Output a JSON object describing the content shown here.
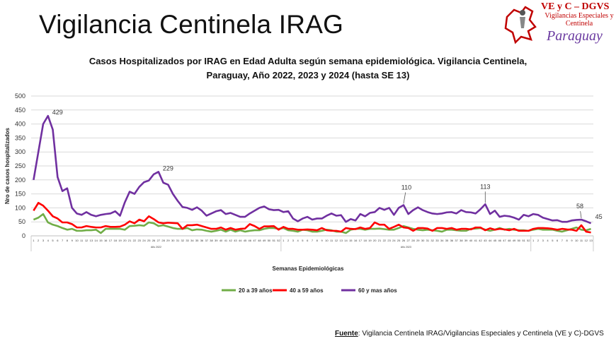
{
  "header": {
    "title": "Vigilancia Centinela IRAG"
  },
  "logo": {
    "line1": "VE y C – DGVS",
    "line2": "Vigilancias Especiales y Centinela",
    "line3": "Paraguay"
  },
  "footer": {
    "source_label": "Fuente",
    "source_text": ": Vigilancia  Centinela IRAG/Vigilancias Especiales y Centinela (VE y C)-DGVS"
  },
  "chart_data": {
    "type": "line",
    "title": "Casos Hospitalizados por IRAG en Edad Adulta según semana epidemiológica. Vigilancia Centinela, Paraguay, Año 2022, 2023 y 2024 (hasta SE 13)",
    "title_line1": "Casos Hospitalizados por IRAG en Edad Adulta según semana epidemiológica. Vigilancia Centinela,",
    "title_line2": "Paraguay, Año 2022, 2023 y 2024 (hasta SE 13)",
    "xlabel": "Semanas Epidemiológicas",
    "ylabel": "Nro de casos hospitalizados",
    "ylim": [
      0,
      500
    ],
    "yticks": [
      0,
      50,
      100,
      150,
      200,
      250,
      300,
      350,
      400,
      450,
      500
    ],
    "grid": true,
    "legend_position": "bottom",
    "year_groups": [
      {
        "label": "Año 2022",
        "weeks": 52
      },
      {
        "label": "Año 2023",
        "weeks": 52
      },
      {
        "label": "",
        "weeks": 13
      }
    ],
    "series": [
      {
        "name": "20 a 39 años",
        "color": "#70ad47",
        "values": [
          58,
          65,
          78,
          48,
          40,
          35,
          28,
          22,
          25,
          18,
          18,
          20,
          20,
          22,
          10,
          25,
          25,
          25,
          25,
          22,
          35,
          36,
          38,
          36,
          48,
          45,
          35,
          38,
          33,
          28,
          25,
          25,
          28,
          20,
          23,
          22,
          18,
          15,
          18,
          22,
          15,
          22,
          15,
          20,
          15,
          18,
          20,
          20,
          25,
          28,
          28,
          25,
          28,
          20,
          18,
          15,
          22,
          20,
          15,
          15,
          18,
          22,
          20,
          15,
          15,
          10,
          22,
          25,
          25,
          22,
          25,
          25,
          26,
          24,
          22,
          22,
          28,
          35,
          30,
          25,
          22,
          20,
          22,
          20,
          18,
          15,
          22,
          22,
          20,
          18,
          18,
          25,
          26,
          28,
          22,
          18,
          22,
          28,
          22,
          25,
          22,
          20,
          20,
          18,
          22,
          25,
          22,
          22,
          22,
          18,
          15,
          20,
          25,
          30,
          22,
          20,
          25
        ]
      },
      {
        "name": "40 a 59 años",
        "color": "#ff0000",
        "values": [
          90,
          118,
          108,
          90,
          70,
          62,
          48,
          48,
          42,
          30,
          30,
          35,
          32,
          30,
          30,
          35,
          32,
          32,
          33,
          40,
          52,
          45,
          58,
          52,
          70,
          60,
          48,
          45,
          47,
          46,
          45,
          25,
          38,
          38,
          40,
          35,
          30,
          25,
          25,
          30,
          22,
          28,
          22,
          25,
          26,
          42,
          35,
          25,
          34,
          34,
          35,
          22,
          32,
          25,
          25,
          22,
          22,
          23,
          22,
          20,
          28,
          20,
          18,
          18,
          15,
          28,
          25,
          24,
          30,
          25,
          28,
          48,
          40,
          40,
          25,
          32,
          40,
          30,
          28,
          18,
          28,
          28,
          26,
          18,
          28,
          28,
          25,
          28,
          22,
          25,
          25,
          23,
          30,
          30,
          20,
          27,
          22,
          25,
          23,
          20,
          25,
          18,
          18,
          18,
          25,
          28,
          28,
          27,
          25,
          22,
          25,
          23,
          22,
          18,
          38,
          15,
          12
        ]
      },
      {
        "name": "60 y mas años",
        "color": "#7030a0",
        "values": [
          200,
          300,
          400,
          429,
          380,
          210,
          160,
          170,
          100,
          80,
          75,
          85,
          75,
          70,
          75,
          78,
          80,
          88,
          72,
          120,
          158,
          150,
          175,
          192,
          198,
          220,
          229,
          190,
          183,
          150,
          125,
          103,
          100,
          93,
          102,
          90,
          72,
          80,
          88,
          92,
          78,
          82,
          75,
          68,
          68,
          80,
          90,
          100,
          105,
          95,
          92,
          93,
          85,
          88,
          62,
          52,
          62,
          68,
          58,
          62,
          62,
          72,
          80,
          72,
          74,
          50,
          60,
          55,
          78,
          70,
          82,
          85,
          100,
          93,
          100,
          75,
          100,
          110,
          78,
          92,
          102,
          92,
          85,
          80,
          78,
          80,
          84,
          85,
          80,
          92,
          85,
          84,
          80,
          95,
          113,
          78,
          90,
          68,
          72,
          70,
          65,
          58,
          75,
          70,
          78,
          75,
          65,
          60,
          55,
          56,
          50,
          50,
          55,
          57,
          58,
          52,
          45
        ]
      }
    ],
    "annotations": [
      {
        "series": 2,
        "index": 3,
        "text": "429"
      },
      {
        "series": 2,
        "index": 26,
        "text": "229"
      },
      {
        "series": 2,
        "index": 77,
        "text": "110"
      },
      {
        "series": 2,
        "index": 94,
        "text": "113"
      },
      {
        "series": 2,
        "index": 114,
        "text": "58"
      },
      {
        "series": 2,
        "index": 116,
        "text": "45"
      }
    ]
  }
}
